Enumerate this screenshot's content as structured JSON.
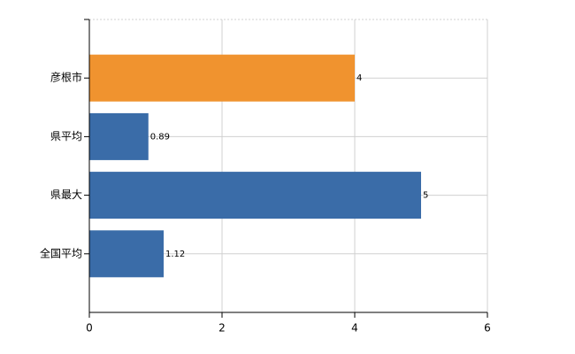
{
  "chart_data": {
    "type": "barh",
    "categories": [
      "彦根市",
      "県平均",
      "県最大",
      "全国平均"
    ],
    "values": [
      4,
      0.89,
      5,
      1.12
    ],
    "colors": [
      "#f0932f",
      "#3a6ca8",
      "#3a6ca8",
      "#3a6ca8"
    ],
    "xlim": [
      0,
      6
    ],
    "xticks": [
      0,
      2,
      4,
      6
    ],
    "grid": true
  }
}
